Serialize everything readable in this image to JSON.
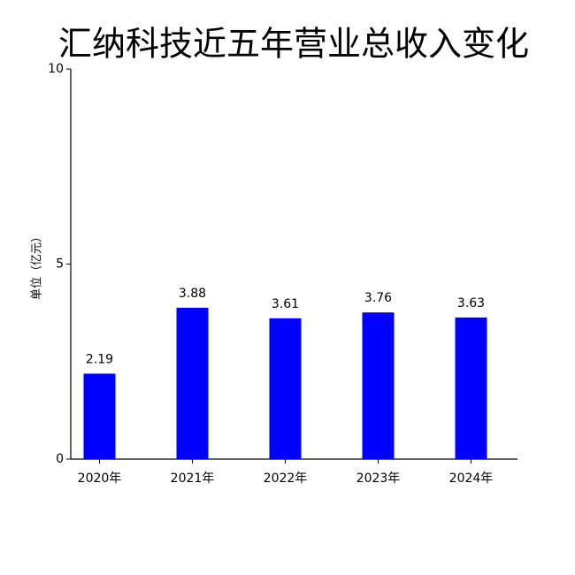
{
  "chart_data": {
    "type": "bar",
    "title": "汇纳科技近五年营业总收入变化",
    "ylabel": "单位（亿元）",
    "categories": [
      "2020年",
      "2021年",
      "2022年",
      "2023年",
      "2024年"
    ],
    "values": [
      2.19,
      3.88,
      3.61,
      3.76,
      3.63
    ],
    "color": "#0000ff",
    "ylim": [
      0,
      10
    ],
    "yticks": [
      0,
      5,
      10
    ],
    "grid": false
  }
}
